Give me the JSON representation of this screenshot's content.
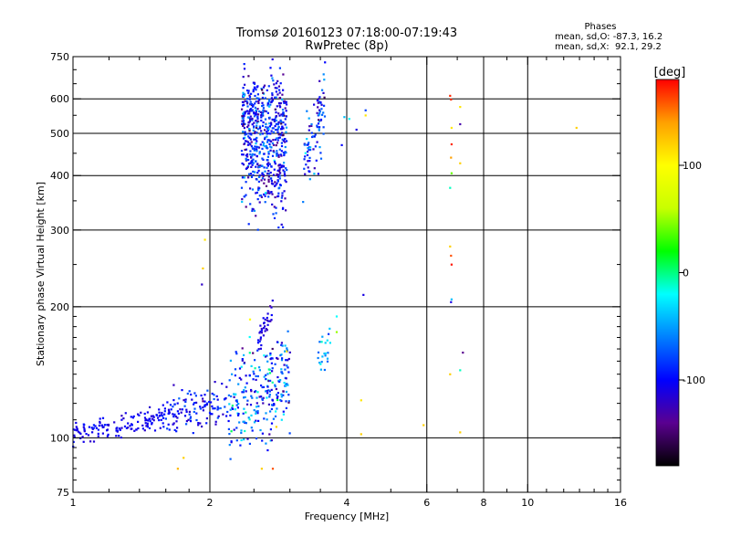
{
  "title_line1": "Tromsø 20160123 07:18:00-07:19:43",
  "title_line2": "RwPretec (8p)",
  "stats": {
    "heading": "Phases",
    "line_O": "mean, sd,O: -87.3, 16.2",
    "line_X": "mean, sd,X:  92.1, 29.2"
  },
  "colorbar": {
    "unit_label": "[deg]",
    "ticks": [
      {
        "value": 100,
        "label": "100"
      },
      {
        "value": 0,
        "label": "0"
      },
      {
        "value": -100,
        "label": "-100"
      }
    ],
    "range": [
      -180,
      180
    ],
    "stops": [
      "#000000",
      "#5a0090",
      "#0000ff",
      "#0080ff",
      "#00ffff",
      "#00ff00",
      "#c8ff00",
      "#ffff00",
      "#ffa000",
      "#ff0000"
    ]
  },
  "chart_data": {
    "type": "scatter",
    "title": "Tromsø 20160123 07:18:00-07:19:43 RwPretec (8p)",
    "xlabel": "Frequency [MHz]",
    "ylabel": "Stationary phase Virtual Height [km]",
    "x_scale": "log",
    "y_scale": "log",
    "xlim": [
      1,
      16
    ],
    "ylim": [
      75,
      750
    ],
    "x_ticks": [
      1,
      2,
      4,
      6,
      8,
      10,
      16
    ],
    "x_tick_labels": [
      "1",
      "2",
      "4",
      "6",
      "8",
      "10",
      "16"
    ],
    "y_ticks": [
      75,
      100,
      200,
      300,
      400,
      500,
      600,
      750
    ],
    "y_tick_labels": [
      "75",
      "100",
      "200",
      "300",
      "400",
      "500",
      "600",
      "750"
    ],
    "grid_x": [
      2,
      4,
      6,
      8,
      10
    ],
    "grid_y": [
      100,
      200,
      300,
      400,
      500,
      600
    ],
    "grid": true,
    "point_color_variable": "phase [deg]",
    "clusters": [
      {
        "name": "E-layer trace",
        "x_range": [
          1.0,
          1.6
        ],
        "y_center": [
          102,
          112
        ],
        "y_spread": 0.03,
        "count": 140,
        "phase_center": -105,
        "phase_spread": 8
      },
      {
        "name": "low trace rise",
        "x_range": [
          1.6,
          2.2
        ],
        "y_center": [
          112,
          122
        ],
        "y_spread": 0.06,
        "count": 120,
        "phase_center": -100,
        "phase_spread": 15
      },
      {
        "name": "Es/E scatter",
        "x_range": [
          2.2,
          3.0
        ],
        "y_center": [
          115,
          140
        ],
        "y_spread": 0.13,
        "count": 260,
        "phase_center": -75,
        "phase_spread": 35
      },
      {
        "name": "lower branch 170-195",
        "x_range": [
          2.55,
          2.75
        ],
        "y_center": [
          168,
          195
        ],
        "y_spread": 0.04,
        "count": 35,
        "phase_center": -115,
        "phase_spread": 12
      },
      {
        "name": "F-layer trace",
        "x_range": [
          2.35,
          2.95
        ],
        "y_center": [
          340,
          630
        ],
        "y_spread": 0.08,
        "count": 620,
        "phase_center": -95,
        "phase_spread": 25
      },
      {
        "name": "F-layer extension",
        "x_range": [
          3.2,
          3.6
        ],
        "y_center": [
          420,
          590
        ],
        "y_spread": 0.1,
        "count": 90,
        "phase_center": -85,
        "phase_spread": 30
      },
      {
        "name": "group 3.6 MHz",
        "x_range": [
          3.45,
          3.7
        ],
        "y_center": [
          150,
          165
        ],
        "y_spread": 0.05,
        "count": 22,
        "phase_center": -40,
        "phase_spread": 25
      }
    ],
    "sparse_points": [
      {
        "x": 1.95,
        "y": 285,
        "phase": 110
      },
      {
        "x": 1.93,
        "y": 245,
        "phase": 120
      },
      {
        "x": 1.92,
        "y": 225,
        "phase": -120
      },
      {
        "x": 1.75,
        "y": 90,
        "phase": 120
      },
      {
        "x": 1.7,
        "y": 85,
        "phase": 130
      },
      {
        "x": 2.45,
        "y": 187,
        "phase": 100
      },
      {
        "x": 2.6,
        "y": 85,
        "phase": 120
      },
      {
        "x": 2.75,
        "y": 85,
        "phase": 160
      },
      {
        "x": 2.8,
        "y": 106,
        "phase": 120
      },
      {
        "x": 2.95,
        "y": 158,
        "phase": 110
      },
      {
        "x": 3.8,
        "y": 190,
        "phase": -20
      },
      {
        "x": 3.8,
        "y": 175,
        "phase": 50
      },
      {
        "x": 4.35,
        "y": 213,
        "phase": -110
      },
      {
        "x": 4.3,
        "y": 122,
        "phase": 110
      },
      {
        "x": 4.3,
        "y": 102,
        "phase": 120
      },
      {
        "x": 4.4,
        "y": 565,
        "phase": -80
      },
      {
        "x": 4.4,
        "y": 550,
        "phase": 110
      },
      {
        "x": 4.2,
        "y": 510,
        "phase": -110
      },
      {
        "x": 4.05,
        "y": 540,
        "phase": -20
      },
      {
        "x": 3.95,
        "y": 545,
        "phase": -40
      },
      {
        "x": 3.9,
        "y": 470,
        "phase": -100
      },
      {
        "x": 5.9,
        "y": 107,
        "phase": 120
      },
      {
        "x": 6.75,
        "y": 610,
        "phase": 170
      },
      {
        "x": 6.78,
        "y": 598,
        "phase": 170
      },
      {
        "x": 6.8,
        "y": 515,
        "phase": 110
      },
      {
        "x": 6.8,
        "y": 472,
        "phase": 170
      },
      {
        "x": 6.78,
        "y": 440,
        "phase": 140
      },
      {
        "x": 6.8,
        "y": 405,
        "phase": 40
      },
      {
        "x": 6.75,
        "y": 375,
        "phase": -10
      },
      {
        "x": 6.75,
        "y": 275,
        "phase": 120
      },
      {
        "x": 6.78,
        "y": 262,
        "phase": 160
      },
      {
        "x": 6.8,
        "y": 250,
        "phase": 175
      },
      {
        "x": 6.8,
        "y": 208,
        "phase": -40
      },
      {
        "x": 6.78,
        "y": 205,
        "phase": -110
      },
      {
        "x": 6.75,
        "y": 140,
        "phase": 120
      },
      {
        "x": 7.1,
        "y": 575,
        "phase": 110
      },
      {
        "x": 7.1,
        "y": 525,
        "phase": -130
      },
      {
        "x": 7.1,
        "y": 427,
        "phase": 120
      },
      {
        "x": 7.2,
        "y": 157,
        "phase": -140
      },
      {
        "x": 7.1,
        "y": 143,
        "phase": -10
      },
      {
        "x": 7.1,
        "y": 103,
        "phase": 120
      },
      {
        "x": 12.8,
        "y": 515,
        "phase": 120
      }
    ]
  }
}
